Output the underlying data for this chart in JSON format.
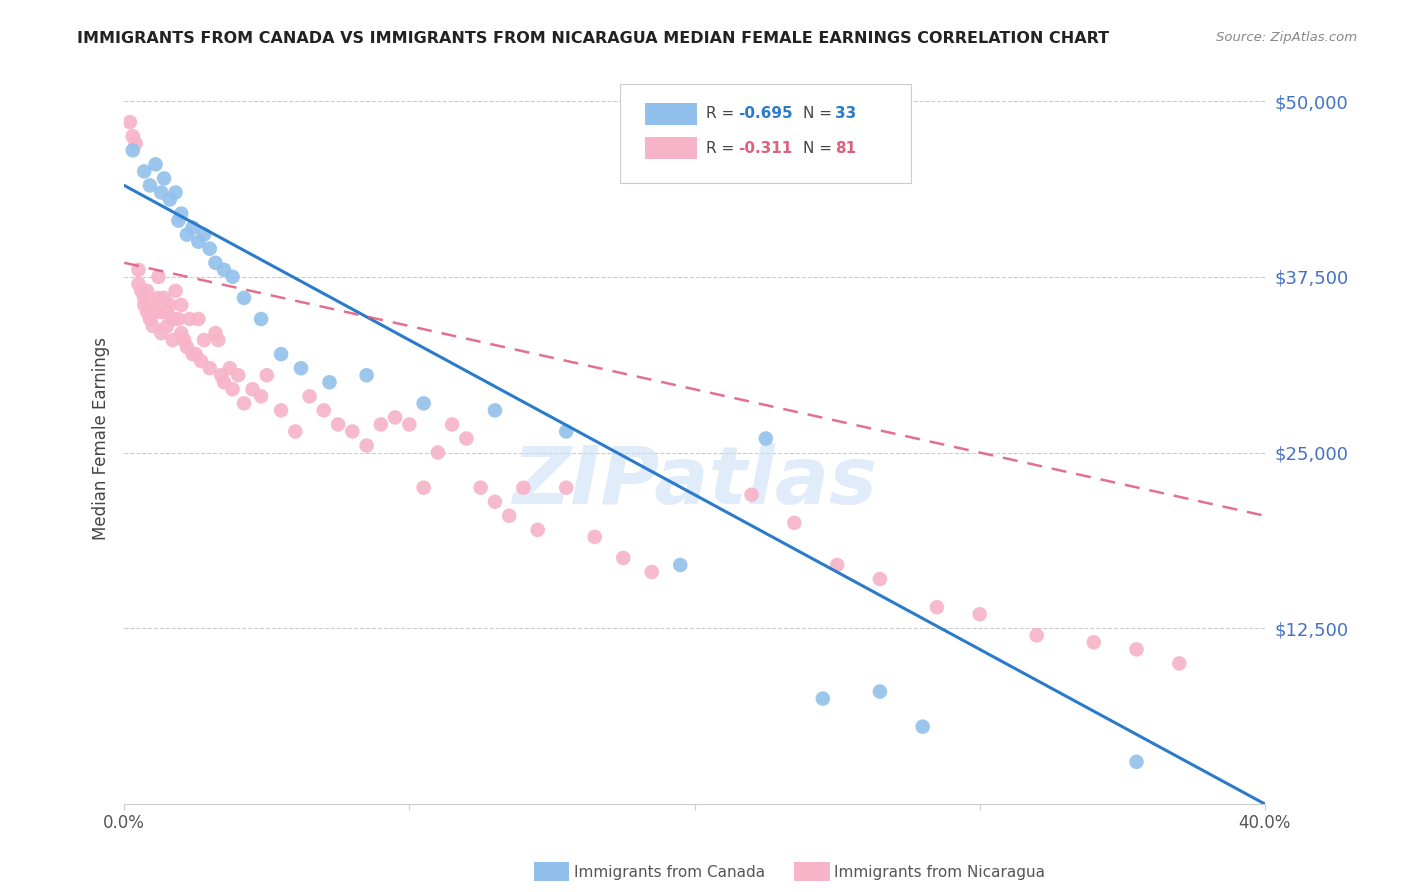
{
  "title": "IMMIGRANTS FROM CANADA VS IMMIGRANTS FROM NICARAGUA MEDIAN FEMALE EARNINGS CORRELATION CHART",
  "source": "Source: ZipAtlas.com",
  "ylabel": "Median Female Earnings",
  "ytick_labels": [
    "$50,000",
    "$37,500",
    "$25,000",
    "$12,500"
  ],
  "ytick_values": [
    50000,
    37500,
    25000,
    12500
  ],
  "ylim": [
    0,
    52000
  ],
  "xlim": [
    0.0,
    0.4
  ],
  "xticks": [
    0.0,
    0.1,
    0.2,
    0.3,
    0.4
  ],
  "xtick_labels_show": [
    "0.0%",
    "",
    "",
    "",
    "40.0%"
  ],
  "canada_color": "#92c0ec",
  "nicaragua_color": "#f7b3c8",
  "canada_line_color": "#2b7bcc",
  "nicaragua_line_color": "#e06080",
  "legend_r_canada": "R = −0.695",
  "legend_n_canada": "N = 33",
  "legend_r_nicaragua": "R = −0.311",
  "legend_n_nicaragua": "N = 81",
  "watermark": "ZIPatlas",
  "canada_line_x0": 0.0,
  "canada_line_y0": 44000,
  "canada_line_x1": 0.4,
  "canada_line_y1": 0,
  "nicaragua_line_x0": 0.0,
  "nicaragua_line_y0": 38500,
  "nicaragua_line_x1": 0.4,
  "nicaragua_line_y1": 20500,
  "canada_points_x": [
    0.003,
    0.007,
    0.009,
    0.011,
    0.013,
    0.014,
    0.016,
    0.018,
    0.019,
    0.02,
    0.022,
    0.024,
    0.026,
    0.028,
    0.03,
    0.032,
    0.035,
    0.038,
    0.042,
    0.048,
    0.055,
    0.062,
    0.072,
    0.085,
    0.105,
    0.13,
    0.155,
    0.195,
    0.225,
    0.245,
    0.265,
    0.28,
    0.355
  ],
  "canada_points_y": [
    46500,
    45000,
    44000,
    45500,
    43500,
    44500,
    43000,
    43500,
    41500,
    42000,
    40500,
    41000,
    40000,
    40500,
    39500,
    38500,
    38000,
    37500,
    36000,
    34500,
    32000,
    31000,
    30000,
    30500,
    28500,
    28000,
    26500,
    17000,
    26000,
    7500,
    8000,
    5500,
    3000
  ],
  "nicaragua_points_x": [
    0.002,
    0.003,
    0.004,
    0.005,
    0.005,
    0.006,
    0.007,
    0.007,
    0.008,
    0.008,
    0.009,
    0.01,
    0.01,
    0.011,
    0.012,
    0.012,
    0.013,
    0.013,
    0.014,
    0.015,
    0.015,
    0.016,
    0.017,
    0.017,
    0.018,
    0.019,
    0.02,
    0.02,
    0.021,
    0.022,
    0.023,
    0.024,
    0.025,
    0.026,
    0.027,
    0.028,
    0.03,
    0.032,
    0.033,
    0.034,
    0.035,
    0.037,
    0.038,
    0.04,
    0.042,
    0.045,
    0.048,
    0.05,
    0.055,
    0.06,
    0.065,
    0.07,
    0.075,
    0.08,
    0.085,
    0.09,
    0.095,
    0.1,
    0.105,
    0.11,
    0.115,
    0.12,
    0.125,
    0.13,
    0.135,
    0.14,
    0.145,
    0.155,
    0.165,
    0.175,
    0.185,
    0.22,
    0.235,
    0.25,
    0.265,
    0.285,
    0.3,
    0.32,
    0.34,
    0.355,
    0.37
  ],
  "nicaragua_points_y": [
    48500,
    47500,
    47000,
    38000,
    37000,
    36500,
    36000,
    35500,
    36500,
    35000,
    34500,
    35500,
    34000,
    35000,
    37500,
    36000,
    35000,
    33500,
    36000,
    35000,
    34000,
    35500,
    34500,
    33000,
    36500,
    34500,
    35500,
    33500,
    33000,
    32500,
    34500,
    32000,
    32000,
    34500,
    31500,
    33000,
    31000,
    33500,
    33000,
    30500,
    30000,
    31000,
    29500,
    30500,
    28500,
    29500,
    29000,
    30500,
    28000,
    26500,
    29000,
    28000,
    27000,
    26500,
    25500,
    27000,
    27500,
    27000,
    22500,
    25000,
    27000,
    26000,
    22500,
    21500,
    20500,
    22500,
    19500,
    22500,
    19000,
    17500,
    16500,
    22000,
    20000,
    17000,
    16000,
    14000,
    13500,
    12000,
    11500,
    11000,
    10000
  ]
}
